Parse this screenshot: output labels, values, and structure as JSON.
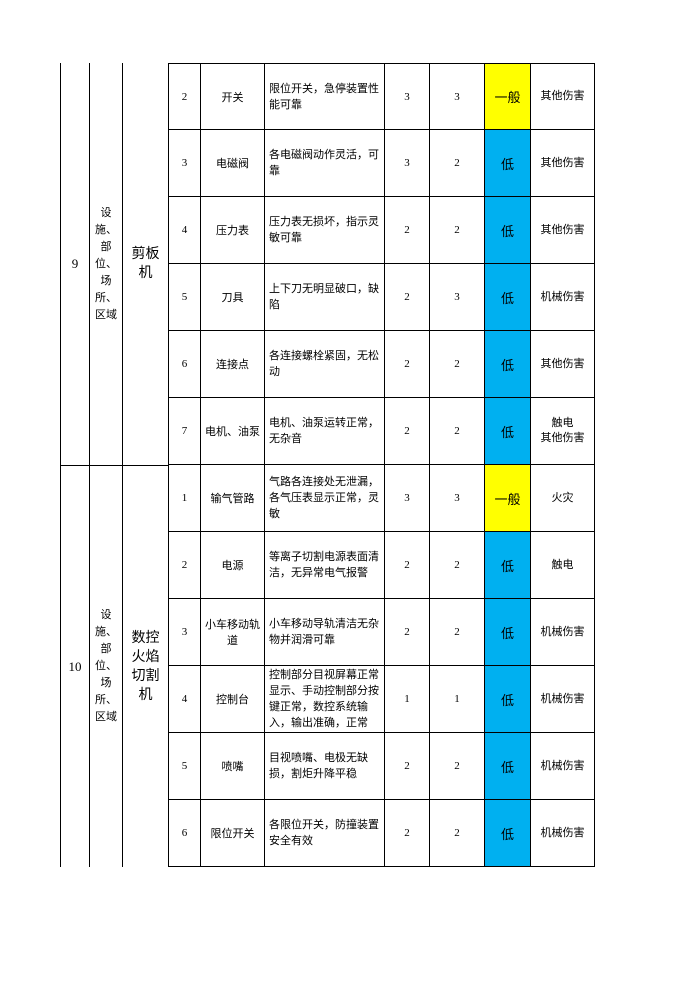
{
  "groups": [
    {
      "no": "9",
      "category": "设施、部位、场所、区域",
      "equipment": "剪板机",
      "rows": [
        {
          "index": 2,
          "item": "开关",
          "standard": "限位开关，急停装置性能可靠",
          "l": 3,
          "s": 3,
          "level": "一般",
          "level_color": "#ffff00",
          "consequence": "其他伤害"
        },
        {
          "index": 3,
          "item": "电磁阀",
          "standard": "各电磁阀动作灵活，可靠",
          "l": 3,
          "s": 2,
          "level": "低",
          "level_color": "#00b0f0",
          "consequence": "其他伤害"
        },
        {
          "index": 4,
          "item": "压力表",
          "standard": "压力表无损坏，指示灵敏可靠",
          "l": 2,
          "s": 2,
          "level": "低",
          "level_color": "#00b0f0",
          "consequence": "其他伤害"
        },
        {
          "index": 5,
          "item": "刀具",
          "standard": "上下刀无明显破口，缺陷",
          "l": 2,
          "s": 3,
          "level": "低",
          "level_color": "#00b0f0",
          "consequence": "机械伤害"
        },
        {
          "index": 6,
          "item": "连接点",
          "standard": "各连接螺栓紧固，无松动",
          "l": 2,
          "s": 2,
          "level": "低",
          "level_color": "#00b0f0",
          "consequence": "其他伤害"
        },
        {
          "index": 7,
          "item": "电机、油泵",
          "standard": "电机、油泵运转正常，无杂音",
          "l": 2,
          "s": 2,
          "level": "低",
          "level_color": "#00b0f0",
          "consequence": "触电\n其他伤害"
        }
      ]
    },
    {
      "no": "10",
      "category": "设施、部位、场所、区域",
      "equipment": "数控火焰切割机",
      "rows": [
        {
          "index": 1,
          "item": "输气管路",
          "standard": "气路各连接处无泄漏，各气压表显示正常，灵敏",
          "l": 3,
          "s": 3,
          "level": "一般",
          "level_color": "#ffff00",
          "consequence": "火灾"
        },
        {
          "index": 2,
          "item": "电源",
          "standard": "等离子切割电源表面清洁，无异常电气报警",
          "l": 2,
          "s": 2,
          "level": "低",
          "level_color": "#00b0f0",
          "consequence": "触电"
        },
        {
          "index": 3,
          "item": "小车移动轨道",
          "standard": "小车移动导轨清洁无杂物并润滑可靠",
          "l": 2,
          "s": 2,
          "level": "低",
          "level_color": "#00b0f0",
          "consequence": "机械伤害"
        },
        {
          "index": 4,
          "item": "控制台",
          "standard": "控制部分目视屏幕正常显示、手动控制部分按键正常，数控系统输入，输出准确，正常",
          "l": 1,
          "s": 1,
          "level": "低",
          "level_color": "#00b0f0",
          "consequence": "机械伤害"
        },
        {
          "index": 5,
          "item": "喷嘴",
          "standard": "目视喷嘴、电极无缺损，割炬升降平稳",
          "l": 2,
          "s": 2,
          "level": "低",
          "level_color": "#00b0f0",
          "consequence": "机械伤害"
        },
        {
          "index": 6,
          "item": "限位开关",
          "standard": "各限位开关，防撞装置安全有效",
          "l": 2,
          "s": 2,
          "level": "低",
          "level_color": "#00b0f0",
          "consequence": "机械伤害"
        }
      ]
    }
  ]
}
